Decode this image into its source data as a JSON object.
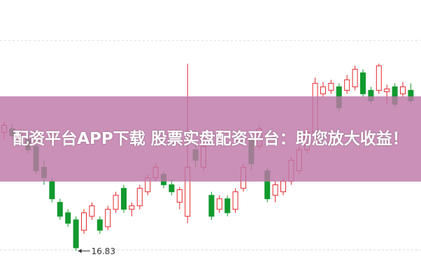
{
  "chart_data": {
    "type": "candlestick",
    "open": [
      20.22,
      20.32,
      20.12,
      20.02,
      19.82,
      19.22,
      18.82,
      18.22,
      17.92,
      17.72,
      17.42,
      17.82,
      17.72,
      17.52,
      18.02,
      18.62,
      18.02,
      18.12,
      18.52,
      18.92,
      19.02,
      18.72,
      18.22,
      17.82,
      19.72,
      19.22,
      18.42,
      18.02,
      18.32,
      18.02,
      18.62,
      20.02,
      19.82,
      19.12,
      18.42,
      18.52,
      18.82,
      19.12,
      19.72,
      20.22,
      21.32,
      21.42,
      21.52,
      21.42,
      21.52,
      21.92,
      21.42,
      21.42,
      21.38,
      21.52,
      21.32,
      21.42
    ],
    "high": [
      20.52,
      20.46,
      20.32,
      20.22,
      19.92,
      19.42,
      18.92,
      18.32,
      18.02,
      17.82,
      18.02,
      18.22,
      17.82,
      18.12,
      18.52,
      18.72,
      18.22,
      18.72,
      19.02,
      19.32,
      19.12,
      18.86,
      18.66,
      22.18,
      19.92,
      19.92,
      18.52,
      18.42,
      18.42,
      18.62,
      19.32,
      20.22,
      20.42,
      19.22,
      18.82,
      18.92,
      19.52,
      19.82,
      20.32,
      21.78,
      21.66,
      21.72,
      21.62,
      21.86,
      22.12,
      22.02,
      21.52,
      22.18,
      21.58,
      21.62,
      21.66,
      21.62
    ],
    "low": [
      20.02,
      20.02,
      19.92,
      19.62,
      19.02,
      18.72,
      18.22,
      17.72,
      17.52,
      16.83,
      17.32,
      17.72,
      17.32,
      17.42,
      17.92,
      17.92,
      17.82,
      18.02,
      18.42,
      18.82,
      18.62,
      18.42,
      18.02,
      17.62,
      19.22,
      19.12,
      17.72,
      17.92,
      17.82,
      17.92,
      18.52,
      19.12,
      19.72,
      18.22,
      18.22,
      18.42,
      18.72,
      19.02,
      19.62,
      20.12,
      21.22,
      21.32,
      20.82,
      21.32,
      21.42,
      21.22,
      21.02,
      21.32,
      21.02,
      20.92,
      21.22,
      21.02
    ],
    "close": [
      20.42,
      20.12,
      20.22,
      19.72,
      19.12,
      18.92,
      18.32,
      17.82,
      17.62,
      16.92,
      17.92,
      18.12,
      17.42,
      18.02,
      18.42,
      18.02,
      18.12,
      18.62,
      18.92,
      19.22,
      18.72,
      18.52,
      18.58,
      19.22,
      19.42,
      19.82,
      17.82,
      18.32,
      17.92,
      18.52,
      19.22,
      19.32,
      20.32,
      18.32,
      18.72,
      18.82,
      19.42,
      19.72,
      20.22,
      21.62,
      21.52,
      21.62,
      20.92,
      21.72,
      22.02,
      21.32,
      21.12,
      22.12,
      21.46,
      21.02,
      21.52,
      21.12
    ],
    "up_color": "#e5262a",
    "down_color": "#119a2e",
    "ylim": [
      16,
      24
    ]
  },
  "banner": "配资平台APP下载 股票实盘配资平台：助您放大收益！"
}
